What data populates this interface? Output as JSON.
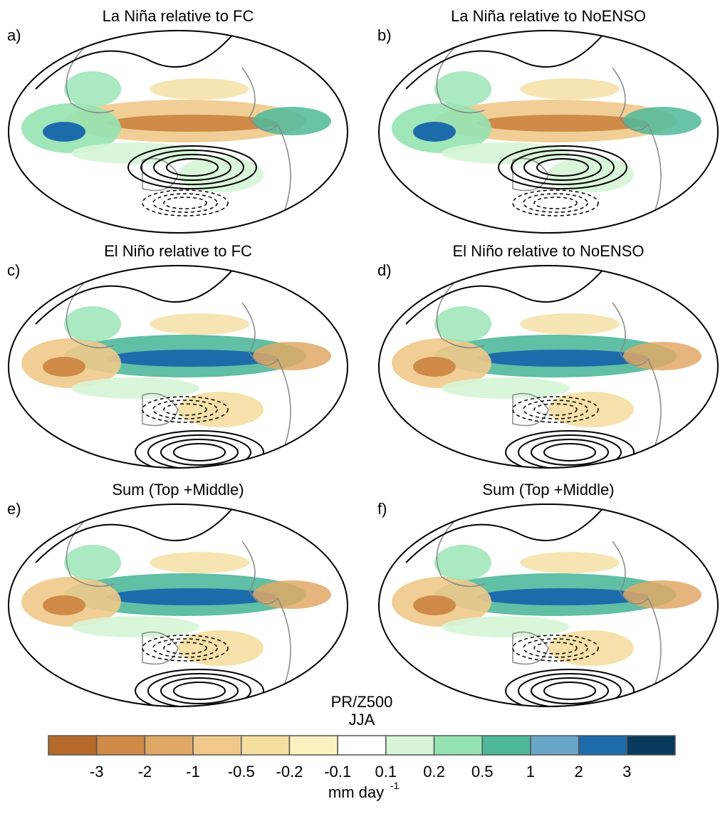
{
  "panels": [
    {
      "letter": "a)",
      "title": "La Niña relative to FC"
    },
    {
      "letter": "b)",
      "title": "La Niña relative to NoENSO"
    },
    {
      "letter": "c)",
      "title": "El Niño relative to FC"
    },
    {
      "letter": "d)",
      "title": "El Niño relative to NoENSO"
    },
    {
      "letter": "e)",
      "title": "Sum (Top +Middle)"
    },
    {
      "letter": "f)",
      "title": "Sum (Top +Middle)"
    }
  ],
  "annotation": {
    "line1": "PR/Z500",
    "line2": "JJA"
  },
  "colorbar": {
    "colors": [
      "#b5692a",
      "#cf8a48",
      "#e0a866",
      "#f0c98a",
      "#f4dea0",
      "#fbf1c0",
      "#ffffff",
      "#d6f5d6",
      "#95e3b1",
      "#4fb89a",
      "#6aa6c8",
      "#1e6bab",
      "#0a3a5e"
    ],
    "labels": [
      "-3",
      "-2",
      "-1",
      "-0.5",
      "-0.2",
      "-0.1",
      "0.1",
      "0.2",
      "0.5",
      "1",
      "2",
      "3"
    ],
    "unit": "mm day",
    "unit_exponent": "-1"
  }
}
